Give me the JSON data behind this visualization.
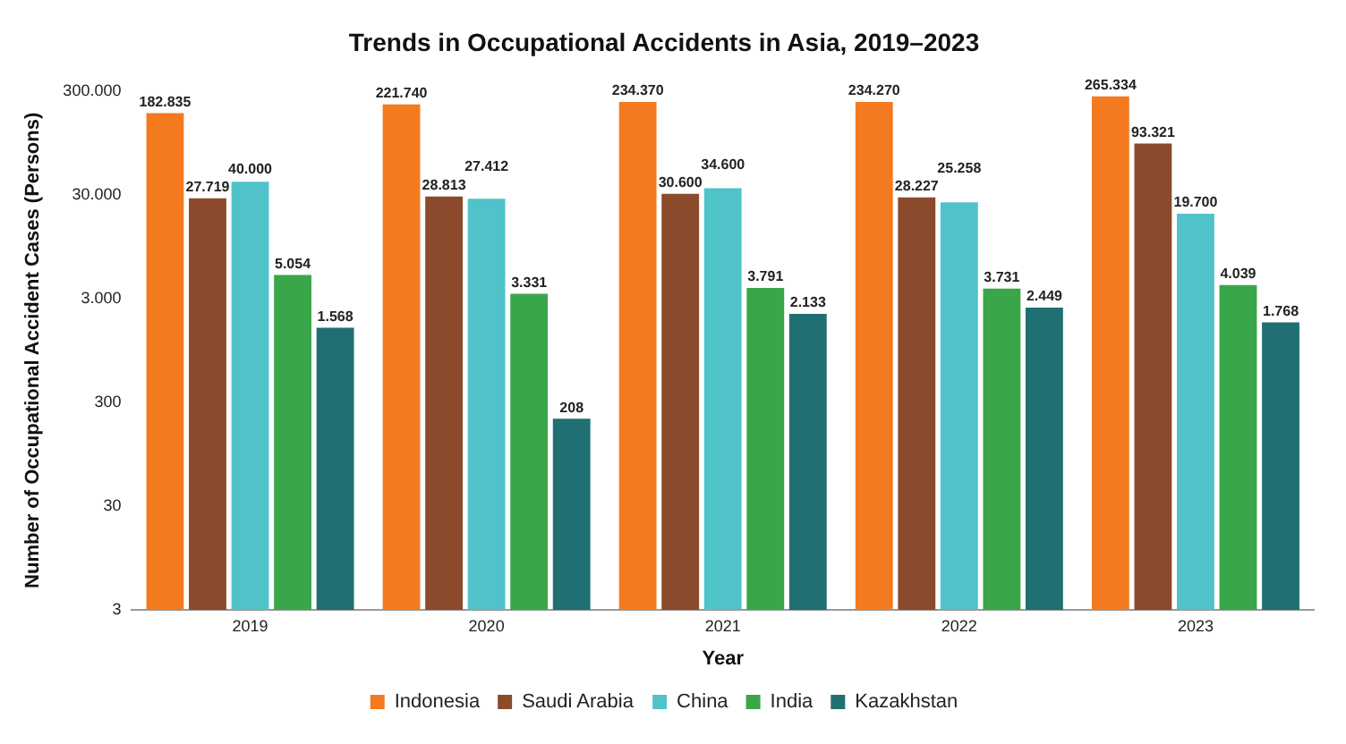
{
  "chart_data": {
    "type": "bar",
    "title": "Trends in Occupational Accidents in Asia, 2019–2023",
    "xlabel": "Year",
    "ylabel": "Number of Occupational Accident Cases (Persons)",
    "categories": [
      "2019",
      "2020",
      "2021",
      "2022",
      "2023"
    ],
    "series": [
      {
        "name": "Indonesia",
        "color": "#f47a20",
        "values": [
          182835,
          221740,
          234370,
          234270,
          265334
        ],
        "value_labels": [
          "182.835",
          "221.740",
          "234.370",
          "234.270",
          "265.334"
        ]
      },
      {
        "name": "Saudi Arabia",
        "color": "#8b4a2b",
        "values": [
          27719,
          28813,
          30600,
          28227,
          93321
        ],
        "value_labels": [
          "27.719",
          "28.813",
          "30.600",
          "28.227",
          "93.321"
        ]
      },
      {
        "name": "China",
        "color": "#4fc3c9",
        "values": [
          40000,
          27412,
          34600,
          25258,
          19700
        ],
        "value_labels": [
          "40.000",
          "27.412",
          "34.600",
          "25.258",
          "19.700"
        ]
      },
      {
        "name": "India",
        "color": "#3aa64a",
        "values": [
          5054,
          3331,
          3791,
          3731,
          4039
        ],
        "value_labels": [
          "5.054",
          "3.331",
          "3.791",
          "3.731",
          "4.039"
        ]
      },
      {
        "name": "Kazakhstan",
        "color": "#1f6f73",
        "values": [
          1568,
          208,
          2133,
          2449,
          1768
        ],
        "value_labels": [
          "1.568",
          "208",
          "2.133",
          "2.449",
          "1.768"
        ]
      }
    ],
    "log": true,
    "ylim": [
      3,
      300000
    ],
    "yticks": [
      {
        "value": 3,
        "label": "3"
      },
      {
        "value": 30,
        "label": "30"
      },
      {
        "value": 300,
        "label": "300"
      },
      {
        "value": 3000,
        "label": "3.000"
      },
      {
        "value": 30000,
        "label": "30.000"
      },
      {
        "value": 300000,
        "label": "300.000"
      }
    ],
    "legend": "bottom"
  }
}
